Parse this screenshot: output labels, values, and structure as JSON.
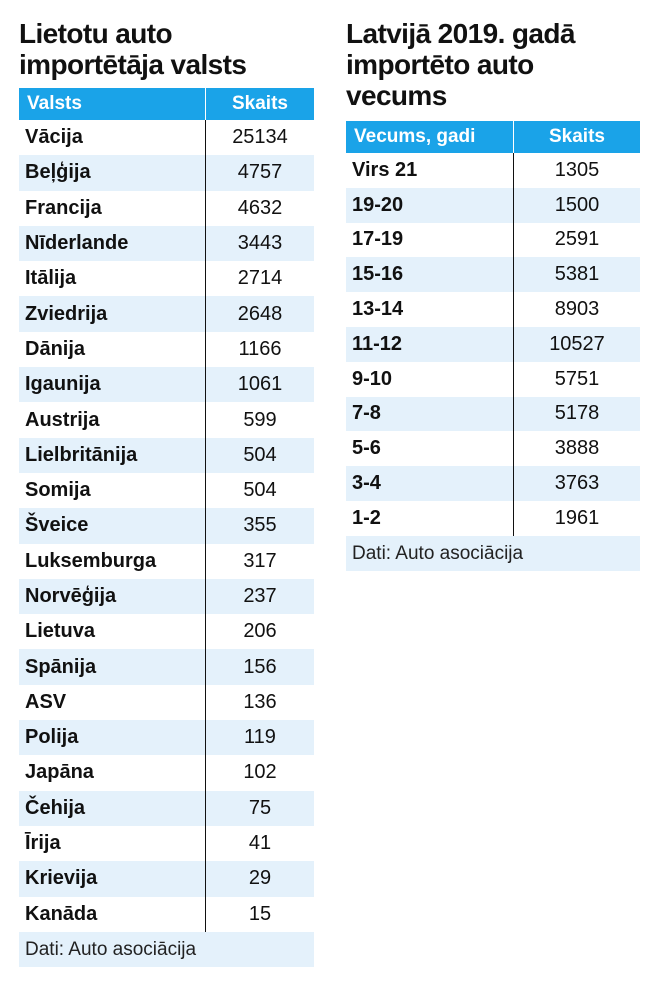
{
  "chart_data": [
    {
      "type": "table",
      "title": "Lietotu auto importētāja valsts",
      "columns": [
        "Valsts",
        "Skaits"
      ],
      "rows": [
        [
          "Vācija",
          "25134"
        ],
        [
          "Beļģija",
          "4757"
        ],
        [
          "Francija",
          "4632"
        ],
        [
          "Nīderlande",
          "3443"
        ],
        [
          "Itālija",
          "2714"
        ],
        [
          "Zviedrija",
          "2648"
        ],
        [
          "Dānija",
          "1166"
        ],
        [
          "Igaunija",
          "1061"
        ],
        [
          "Austrija",
          "599"
        ],
        [
          "Lielbritānija",
          "504"
        ],
        [
          "Somija",
          "504"
        ],
        [
          "Šveice",
          "355"
        ],
        [
          "Luksemburga",
          "317"
        ],
        [
          "Norvēģija",
          "237"
        ],
        [
          "Lietuva",
          "206"
        ],
        [
          "Spānija",
          "156"
        ],
        [
          "ASV",
          "136"
        ],
        [
          "Polija",
          "119"
        ],
        [
          "Japāna",
          "102"
        ],
        [
          "Čehija",
          "75"
        ],
        [
          "Īrija",
          "41"
        ],
        [
          "Krievija",
          "29"
        ],
        [
          "Kanāda",
          "15"
        ]
      ],
      "source": "Dati: Auto asociācija"
    },
    {
      "type": "table",
      "title": "Latvijā 2019. gadā importēto auto vecums",
      "columns": [
        "Vecums, gadi",
        "Skaits"
      ],
      "rows": [
        [
          "Virs 21",
          "1305"
        ],
        [
          "19-20",
          "1500"
        ],
        [
          "17-19",
          "2591"
        ],
        [
          "15-16",
          "5381"
        ],
        [
          "13-14",
          "8903"
        ],
        [
          "11-12",
          "10527"
        ],
        [
          "9-10",
          "5751"
        ],
        [
          "7-8",
          "5178"
        ],
        [
          "5-6",
          "3888"
        ],
        [
          "3-4",
          "3763"
        ],
        [
          "1-2",
          "1961"
        ]
      ],
      "source": "Dati: Auto asociācija"
    }
  ],
  "colors": {
    "header_bg": "#1aa3e8",
    "stripe_bg": "#e4f1fb",
    "text": "#111111"
  }
}
